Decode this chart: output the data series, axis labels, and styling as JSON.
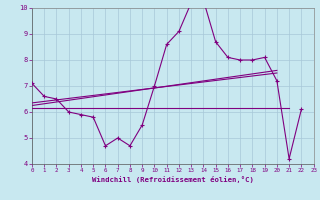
{
  "x_hours": [
    0,
    1,
    2,
    3,
    4,
    5,
    6,
    7,
    8,
    9,
    10,
    11,
    12,
    13,
    14,
    15,
    16,
    17,
    18,
    19,
    20,
    21,
    22,
    23
  ],
  "line1": [
    7.1,
    6.6,
    6.5,
    6.0,
    5.9,
    5.8,
    4.7,
    5.0,
    4.7,
    5.5,
    7.0,
    8.6,
    9.1,
    10.2,
    10.3,
    8.7,
    8.1,
    8.0,
    8.0,
    8.1,
    7.2,
    4.2,
    6.1,
    null
  ],
  "line2_x": [
    0,
    21
  ],
  "line2_y": [
    6.15,
    6.15
  ],
  "line3_x": [
    0,
    20
  ],
  "line3_y": [
    6.25,
    7.6
  ],
  "line4_x": [
    0,
    20
  ],
  "line4_y": [
    6.35,
    7.5
  ],
  "ylim": [
    4,
    10
  ],
  "yticks": [
    4,
    5,
    6,
    7,
    8,
    9,
    10
  ],
  "xlim": [
    0,
    23
  ],
  "xticks": [
    0,
    1,
    2,
    3,
    4,
    5,
    6,
    7,
    8,
    9,
    10,
    11,
    12,
    13,
    14,
    15,
    16,
    17,
    18,
    19,
    20,
    21,
    22,
    23
  ],
  "xlabel": "Windchill (Refroidissement éolien,°C)",
  "line_color": "#800080",
  "bg_color": "#c8e8f0",
  "grid_color": "#a8c8d8",
  "tick_color": "#800080"
}
